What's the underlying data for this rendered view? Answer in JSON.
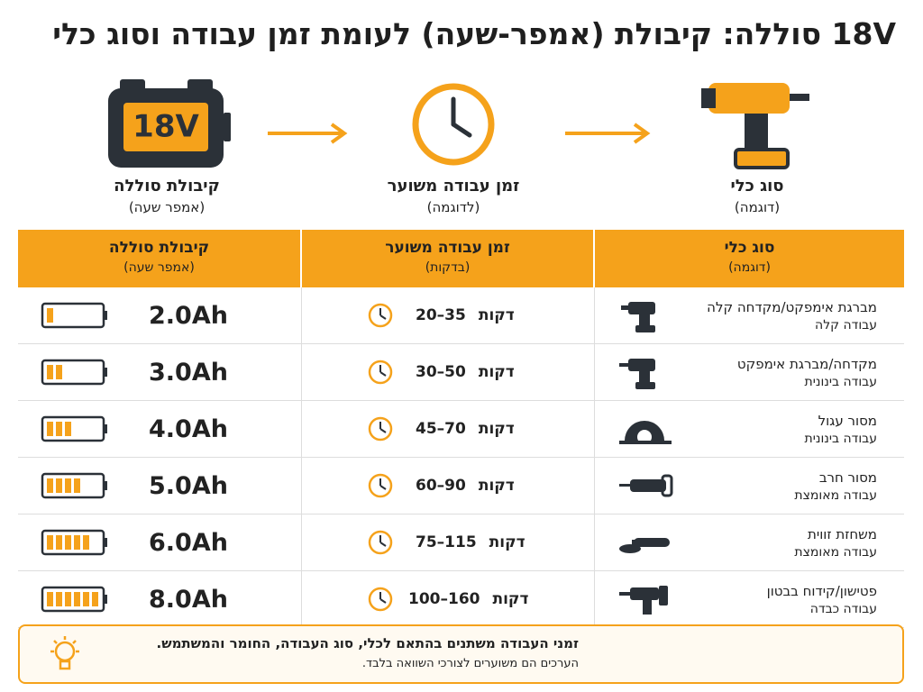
{
  "header": {
    "title": "18V סוללה: קיבולת (אמפר-שעה) לעומת זמן עבודה וסוג כלי"
  },
  "flow": {
    "battery_badge": "18V",
    "steps": [
      {
        "label": "קיבולת סוללה",
        "sublabel": "(אמפר שעה)"
      },
      {
        "label": "זמן עבודה משוער",
        "sublabel": "(לדוגמה)"
      },
      {
        "label": "סוג כלי",
        "sublabel": "(דוגמה)"
      }
    ]
  },
  "table": {
    "headers": [
      {
        "label": "קיבולת סוללה",
        "sublabel": "(אמפר שעה)"
      },
      {
        "label": "זמן עבודה משוער",
        "sublabel": "(בדקות)"
      },
      {
        "label": "סוג כלי",
        "sublabel": "(דוגמה)"
      }
    ],
    "rows": [
      {
        "capacity": "2.0Ah",
        "time": "20–35",
        "unit": "דקות",
        "tool": "מברגת אימפקט/מקדחה קלה",
        "workload": "עבודה קלה"
      },
      {
        "capacity": "3.0Ah",
        "time": "30–50",
        "unit": "דקות",
        "tool": "מקדחה/מברגת אימפקט",
        "workload": "עבודה בינונית"
      },
      {
        "capacity": "4.0Ah",
        "time": "45–70",
        "unit": "דקות",
        "tool": "מסור עגול",
        "workload": "עבודה בינונית"
      },
      {
        "capacity": "5.0Ah",
        "time": "60–90",
        "unit": "דקות",
        "tool": "מסור חרב",
        "workload": "עבודה מאומצת"
      },
      {
        "capacity": "6.0Ah",
        "time": "75–115",
        "unit": "דקות",
        "tool": "משחזת זווית",
        "workload": "עבודה מאומצת"
      },
      {
        "capacity": "8.0Ah",
        "time": "100–160",
        "unit": "דקות",
        "tool": "פטישון/קידוח בבטון",
        "workload": "עבודה כבדה"
      }
    ]
  },
  "note": {
    "line1": "זמני העבודה משתנים בהתאם לכלי, סוג העבודה, החומר והמשתמש.",
    "line2": "הערכים הם משוערים לצורכי השוואה בלבד."
  }
}
